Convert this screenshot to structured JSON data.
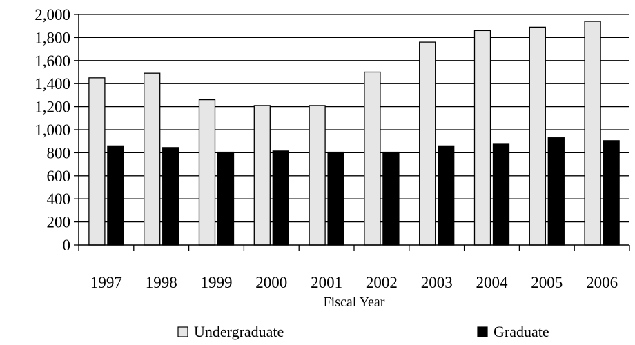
{
  "chart_data": {
    "type": "bar",
    "title": "",
    "xlabel": "Fiscal Year",
    "ylabel": "",
    "ylim": [
      0,
      2000
    ],
    "ytick_step": 200,
    "ytick_labels": [
      "0",
      "200",
      "400",
      "600",
      "800",
      "1,000",
      "1,200",
      "1,400",
      "1,600",
      "1,800",
      "2,000"
    ],
    "grid": true,
    "legend_position": "bottom",
    "categories": [
      "1997",
      "1998",
      "1999",
      "2000",
      "2001",
      "2002",
      "2003",
      "2004",
      "2005",
      "2006"
    ],
    "series": [
      {
        "name": "Undergraduate",
        "color": "#e6e6e6",
        "values": [
          1450,
          1490,
          1260,
          1210,
          1210,
          1500,
          1760,
          1860,
          1890,
          1940
        ]
      },
      {
        "name": "Graduate",
        "color": "#000000",
        "values": [
          860,
          845,
          805,
          815,
          805,
          805,
          860,
          880,
          930,
          905
        ]
      }
    ]
  }
}
